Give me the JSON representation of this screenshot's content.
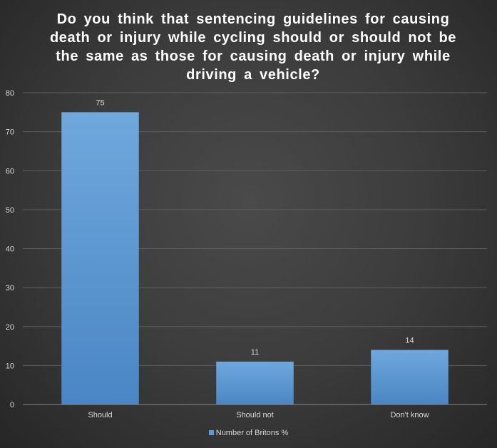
{
  "chart_data": {
    "type": "bar",
    "title": "Do you think that sentencing guidelines for causing death or injury while cycling should or should not be the same as those for causing death or injury while driving a vehicle?",
    "categories": [
      "Should",
      "Should not",
      "Don't know"
    ],
    "series": [
      {
        "name": "Number of Britons %",
        "values": [
          75,
          11,
          14
        ]
      }
    ],
    "data_labels": [
      "75",
      "11",
      "14"
    ],
    "y_ticks": [
      "0",
      "10",
      "20",
      "30",
      "40",
      "50",
      "60",
      "70",
      "80"
    ],
    "ylim": [
      0,
      80
    ],
    "xlabel": "",
    "ylabel": "",
    "grid": true,
    "legend_position": "bottom",
    "bar_color": "#5b9bd5"
  }
}
